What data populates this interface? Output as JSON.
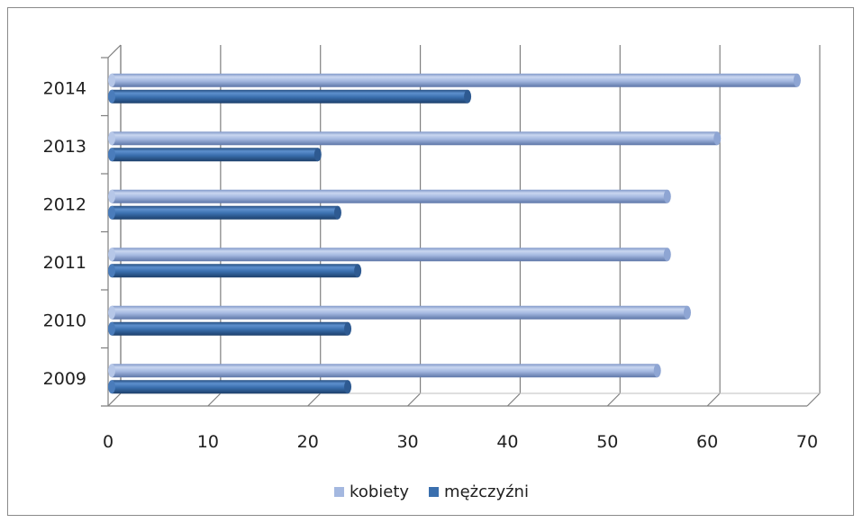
{
  "chart_data": {
    "type": "bar",
    "orientation": "horizontal",
    "style": "3d-cylinder",
    "categories": [
      "2009",
      "2010",
      "2011",
      "2012",
      "2013",
      "2014"
    ],
    "series": [
      {
        "name": "kobiety",
        "values": [
          55,
          58,
          56,
          56,
          61,
          69
        ]
      },
      {
        "name": "mężczyźni",
        "values": [
          24,
          24,
          25,
          23,
          21,
          36
        ]
      }
    ],
    "xlim": [
      0,
      70
    ],
    "xticks": [
      0,
      10,
      20,
      30,
      40,
      50,
      60,
      70
    ],
    "grid": true,
    "legend_position": "bottom",
    "title": "",
    "xlabel": "",
    "ylabel": "",
    "colors": {
      "kobiety": "#a4b8e0",
      "mężczyźni": "#3a6fae",
      "axis": "#7f7f7f",
      "grid": "#7f7f7f",
      "floor": "#bfbfbf"
    }
  }
}
